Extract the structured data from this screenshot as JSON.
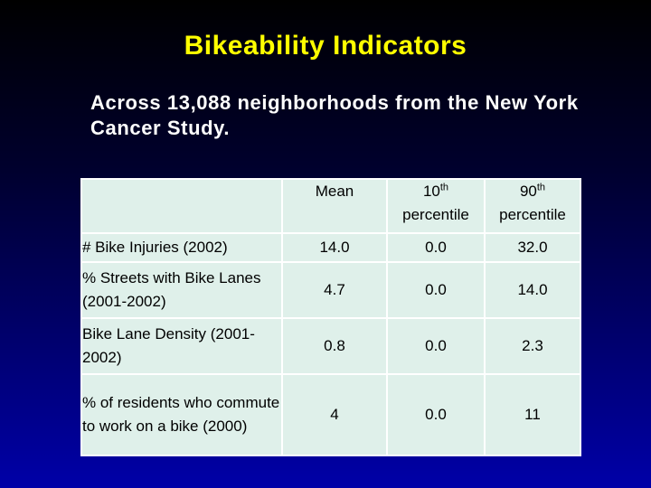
{
  "title": "Bikeability Indicators",
  "subtitle": "Across 13,088 neighborhoods from the New York Cancer Study.",
  "table": {
    "header": {
      "blank": "",
      "mean": "Mean",
      "p10_num": "10",
      "p10_sup": "th",
      "p10_word": "percentile",
      "p90_num": "90",
      "p90_sup": "th",
      "p90_word": "percentile"
    },
    "rows": [
      {
        "label": "# Bike Injuries (2002)",
        "mean": "14.0",
        "p10": "0.0",
        "p90": "32.0"
      },
      {
        "label": "% Streets with Bike Lanes (2001-2002)",
        "mean": "4.7",
        "p10": "0.0",
        "p90": "14.0"
      },
      {
        "label": "Bike Lane Density (2001-2002)",
        "mean": "0.8",
        "p10": "0.0",
        "p90": "2.3"
      },
      {
        "label": "% of residents who commute to work on a bike (2000)",
        "mean": "4",
        "p10": "0.0",
        "p90": "11"
      }
    ]
  },
  "colors": {
    "title": "#ffff00",
    "text": "#ffffff",
    "cell_bg": "#dff0ea"
  }
}
